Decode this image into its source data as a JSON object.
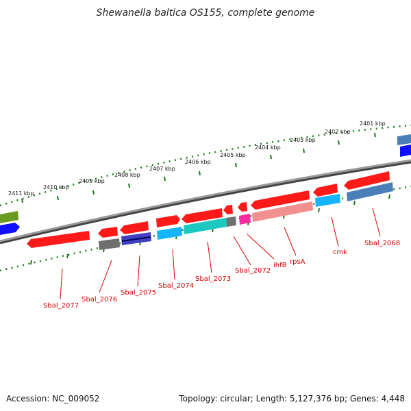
{
  "title": "Shewanella baltica OS155, complete genome",
  "footer": {
    "accession": "Accession: NC_009052",
    "summary": "Topology: circular; Length: 5,127,376 bp; Genes: 4,448"
  },
  "colors": {
    "forward_red": "#ff1a1a",
    "reverse_red": "#f29090",
    "cyan": "#14b4ff",
    "teal": "#1cc8c0",
    "grey": "#707070",
    "magenta": "#ff2aa0",
    "steel_blue": "#4a7fb8",
    "blue": "#1010ff",
    "olive": "#6a9a20",
    "tick_green": "#1a7a1a",
    "backbone": "#777777"
  },
  "tick_labels": [
    "2411 kbp",
    "2410 kbp",
    "2409 kbp",
    "2408 kbp",
    "2407 kbp",
    "2406 kbp",
    "2405 kbp",
    "2404 kbp",
    "2403 kbp",
    "2402 kbp",
    "2401 kbp"
  ],
  "gene_labels": [
    "Sbal_2077",
    "Sbal_2076",
    "Sbal_2075",
    "Sbal_2074",
    "Sbal_2073",
    "Sbal_2072",
    "ihfB",
    "rpsA",
    "cmk",
    "Sbal_2068"
  ]
}
